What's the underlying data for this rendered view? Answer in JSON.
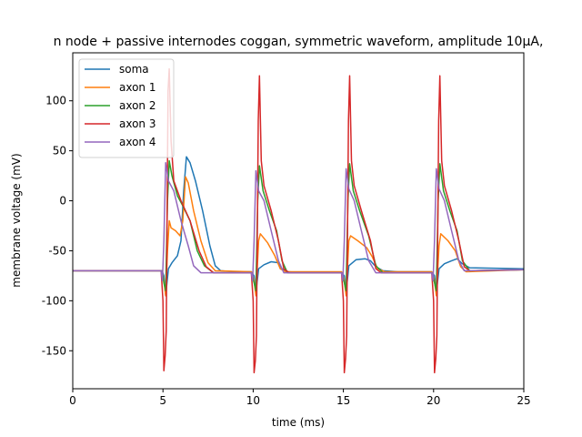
{
  "chart_data": {
    "type": "line",
    "title": "n node + passive internodes coggan, symmetric waveform, amplitude 10µA,",
    "xlabel": "time (ms)",
    "ylabel": "membrane voltage (mV)",
    "xlim": [
      0,
      25
    ],
    "ylim": [
      -188,
      148
    ],
    "xticks": [
      0,
      5,
      10,
      15,
      20,
      25
    ],
    "yticks": [
      -150,
      -100,
      -50,
      0,
      50,
      100
    ],
    "grid": false,
    "legend_position": "top-left",
    "series": [
      {
        "name": "soma",
        "color": "#1f77b4",
        "points": [
          [
            0,
            -70
          ],
          [
            4.95,
            -70
          ],
          [
            5.05,
            -75
          ],
          [
            5.15,
            -95
          ],
          [
            5.3,
            -68
          ],
          [
            5.5,
            -62
          ],
          [
            5.8,
            -55
          ],
          [
            6.0,
            -40
          ],
          [
            6.15,
            10
          ],
          [
            6.3,
            44
          ],
          [
            6.5,
            38
          ],
          [
            6.8,
            20
          ],
          [
            7.2,
            -10
          ],
          [
            7.6,
            -45
          ],
          [
            7.9,
            -65
          ],
          [
            8.2,
            -70
          ],
          [
            9.0,
            -71
          ],
          [
            9.9,
            -71
          ],
          [
            10.05,
            -75
          ],
          [
            10.15,
            -92
          ],
          [
            10.3,
            -68
          ],
          [
            10.6,
            -64
          ],
          [
            11.0,
            -61
          ],
          [
            11.4,
            -62
          ],
          [
            11.6,
            -68
          ],
          [
            11.9,
            -71
          ],
          [
            13,
            -72
          ],
          [
            14.9,
            -72
          ],
          [
            15.05,
            -75
          ],
          [
            15.15,
            -92
          ],
          [
            15.3,
            -65
          ],
          [
            15.7,
            -59
          ],
          [
            16.2,
            -58
          ],
          [
            16.5,
            -60
          ],
          [
            16.8,
            -66
          ],
          [
            17.2,
            -70
          ],
          [
            18,
            -71
          ],
          [
            19.9,
            -71
          ],
          [
            20.05,
            -75
          ],
          [
            20.15,
            -92
          ],
          [
            20.3,
            -68
          ],
          [
            20.6,
            -63
          ],
          [
            21.0,
            -60
          ],
          [
            21.3,
            -58
          ],
          [
            21.6,
            -63
          ],
          [
            22.0,
            -67
          ],
          [
            25,
            -68
          ]
        ]
      },
      {
        "name": "axon 1",
        "color": "#ff7f0e",
        "points": [
          [
            0,
            -70
          ],
          [
            4.95,
            -70
          ],
          [
            5.05,
            -80
          ],
          [
            5.15,
            -95
          ],
          [
            5.25,
            -50
          ],
          [
            5.35,
            -20
          ],
          [
            5.45,
            -27
          ],
          [
            5.7,
            -30
          ],
          [
            5.95,
            -35
          ],
          [
            6.1,
            -20
          ],
          [
            6.25,
            24
          ],
          [
            6.4,
            18
          ],
          [
            6.7,
            -10
          ],
          [
            7.1,
            -40
          ],
          [
            7.5,
            -62
          ],
          [
            7.9,
            -70
          ],
          [
            9.9,
            -71
          ],
          [
            10.05,
            -80
          ],
          [
            10.15,
            -95
          ],
          [
            10.3,
            -40
          ],
          [
            10.4,
            -33
          ],
          [
            10.8,
            -42
          ],
          [
            11.2,
            -55
          ],
          [
            11.5,
            -68
          ],
          [
            11.8,
            -71
          ],
          [
            14.9,
            -71
          ],
          [
            15.05,
            -80
          ],
          [
            15.15,
            -95
          ],
          [
            15.3,
            -40
          ],
          [
            15.4,
            -35
          ],
          [
            15.8,
            -40
          ],
          [
            16.3,
            -47
          ],
          [
            16.6,
            -56
          ],
          [
            16.9,
            -68
          ],
          [
            17.3,
            -71
          ],
          [
            19.9,
            -71
          ],
          [
            20.05,
            -80
          ],
          [
            20.15,
            -95
          ],
          [
            20.3,
            -45
          ],
          [
            20.4,
            -33
          ],
          [
            20.8,
            -40
          ],
          [
            21.2,
            -50
          ],
          [
            21.5,
            -66
          ],
          [
            21.8,
            -71
          ],
          [
            25,
            -69
          ]
        ]
      },
      {
        "name": "axon 2",
        "color": "#2ca02c",
        "points": [
          [
            0,
            -70
          ],
          [
            4.95,
            -70
          ],
          [
            5.05,
            -82
          ],
          [
            5.15,
            -90
          ],
          [
            5.25,
            0
          ],
          [
            5.35,
            40
          ],
          [
            5.5,
            25
          ],
          [
            5.8,
            5
          ],
          [
            6.1,
            -5
          ],
          [
            6.5,
            -20
          ],
          [
            6.9,
            -50
          ],
          [
            7.3,
            -65
          ],
          [
            7.8,
            -72
          ],
          [
            9.9,
            -72
          ],
          [
            10.05,
            -82
          ],
          [
            10.15,
            -90
          ],
          [
            10.25,
            0
          ],
          [
            10.35,
            35
          ],
          [
            10.55,
            10
          ],
          [
            10.9,
            -10
          ],
          [
            11.3,
            -30
          ],
          [
            11.6,
            -60
          ],
          [
            11.9,
            -72
          ],
          [
            14.9,
            -72
          ],
          [
            15.05,
            -82
          ],
          [
            15.15,
            -90
          ],
          [
            15.25,
            0
          ],
          [
            15.35,
            37
          ],
          [
            15.55,
            10
          ],
          [
            15.9,
            -10
          ],
          [
            16.4,
            -35
          ],
          [
            16.8,
            -65
          ],
          [
            17.2,
            -72
          ],
          [
            19.9,
            -72
          ],
          [
            20.05,
            -82
          ],
          [
            20.15,
            -90
          ],
          [
            20.25,
            0
          ],
          [
            20.35,
            37
          ],
          [
            20.55,
            10
          ],
          [
            20.9,
            -10
          ],
          [
            21.3,
            -30
          ],
          [
            21.6,
            -60
          ],
          [
            22.0,
            -70
          ],
          [
            25,
            -69
          ]
        ]
      },
      {
        "name": "axon 3",
        "color": "#d62728",
        "points": [
          [
            0,
            -70
          ],
          [
            4.9,
            -70
          ],
          [
            5.0,
            -100
          ],
          [
            5.05,
            -170
          ],
          [
            5.12,
            -155
          ],
          [
            5.18,
            -130
          ],
          [
            5.28,
            110
          ],
          [
            5.35,
            132
          ],
          [
            5.45,
            60
          ],
          [
            5.6,
            20
          ],
          [
            6.0,
            0
          ],
          [
            6.5,
            -20
          ],
          [
            7.0,
            -50
          ],
          [
            7.4,
            -66
          ],
          [
            7.8,
            -72
          ],
          [
            9.9,
            -72
          ],
          [
            10.0,
            -100
          ],
          [
            10.05,
            -172
          ],
          [
            10.12,
            -160
          ],
          [
            10.18,
            -135
          ],
          [
            10.28,
            80
          ],
          [
            10.35,
            125
          ],
          [
            10.45,
            40
          ],
          [
            10.6,
            15
          ],
          [
            11.0,
            -10
          ],
          [
            11.4,
            -40
          ],
          [
            11.7,
            -68
          ],
          [
            12.0,
            -72
          ],
          [
            14.9,
            -72
          ],
          [
            15.0,
            -100
          ],
          [
            15.05,
            -172
          ],
          [
            15.12,
            -158
          ],
          [
            15.18,
            -135
          ],
          [
            15.28,
            80
          ],
          [
            15.35,
            125
          ],
          [
            15.45,
            40
          ],
          [
            15.6,
            15
          ],
          [
            16.0,
            -10
          ],
          [
            16.5,
            -40
          ],
          [
            16.8,
            -68
          ],
          [
            17.1,
            -72
          ],
          [
            19.9,
            -72
          ],
          [
            20.0,
            -100
          ],
          [
            20.05,
            -172
          ],
          [
            20.12,
            -158
          ],
          [
            20.18,
            -135
          ],
          [
            20.28,
            80
          ],
          [
            20.35,
            125
          ],
          [
            20.45,
            40
          ],
          [
            20.6,
            15
          ],
          [
            21.0,
            -10
          ],
          [
            21.4,
            -40
          ],
          [
            21.7,
            -66
          ],
          [
            22.0,
            -70
          ],
          [
            25,
            -69
          ]
        ]
      },
      {
        "name": "axon 4",
        "color": "#9467bd",
        "points": [
          [
            0,
            -70
          ],
          [
            4.9,
            -70
          ],
          [
            4.97,
            -80
          ],
          [
            5.05,
            -40
          ],
          [
            5.15,
            38
          ],
          [
            5.3,
            20
          ],
          [
            5.6,
            10
          ],
          [
            6.0,
            -20
          ],
          [
            6.4,
            -45
          ],
          [
            6.7,
            -65
          ],
          [
            7.1,
            -72
          ],
          [
            9.9,
            -72
          ],
          [
            9.97,
            -80
          ],
          [
            10.05,
            -40
          ],
          [
            10.15,
            30
          ],
          [
            10.3,
            10
          ],
          [
            10.6,
            0
          ],
          [
            11.0,
            -30
          ],
          [
            11.4,
            -60
          ],
          [
            11.7,
            -72
          ],
          [
            14.9,
            -72
          ],
          [
            14.97,
            -80
          ],
          [
            15.05,
            -40
          ],
          [
            15.15,
            32
          ],
          [
            15.3,
            12
          ],
          [
            15.6,
            0
          ],
          [
            16.0,
            -30
          ],
          [
            16.4,
            -60
          ],
          [
            16.8,
            -72
          ],
          [
            19.9,
            -72
          ],
          [
            19.97,
            -80
          ],
          [
            20.05,
            -40
          ],
          [
            20.15,
            32
          ],
          [
            20.3,
            12
          ],
          [
            20.6,
            0
          ],
          [
            21.0,
            -30
          ],
          [
            21.4,
            -60
          ],
          [
            21.7,
            -70
          ],
          [
            25,
            -69
          ]
        ]
      }
    ]
  }
}
